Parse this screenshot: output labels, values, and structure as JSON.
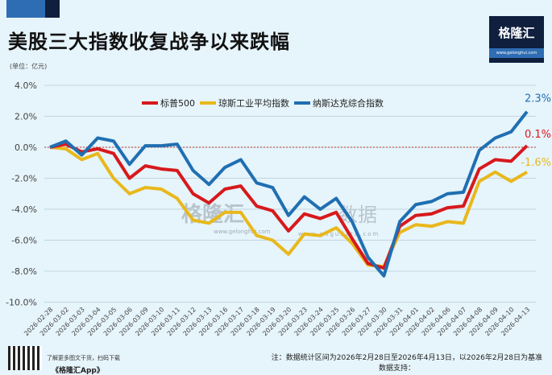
{
  "header": {
    "title": "美股三大指数收复战争以来跌幅",
    "unit": "(单位：亿元)",
    "logo_text": "格隆汇",
    "logo_url": "www.gelonghui.com"
  },
  "watermarks": [
    "格隆汇",
    "www.gelonghui.com",
    "数据",
    "www.gogudata.com"
  ],
  "footer": {
    "note": "注：数据统计区间为2026年2月28日至2026年4月13日，以2026年2月28日为基准",
    "source": "数据支持：",
    "qr_text": "了解更多图文干货，扫码下载",
    "app_name": "《格隆汇App》"
  },
  "colors": {
    "sp500": "#d7191c",
    "dow": "#e8b81c",
    "nasdaq": "#1f6fb2",
    "background": "#e6f4fb",
    "zero_line": "#c0392b"
  },
  "chart_data": {
    "type": "line",
    "title": "美股三大指数收复战争以来跌幅",
    "ylim": [
      -10,
      4
    ],
    "yticks": [
      "4.0%",
      "2.0%",
      "0.0%",
      "-2.0%",
      "-4.0%",
      "-6.0%",
      "-8.0%",
      "-10.0%"
    ],
    "ytick_values": [
      4,
      2,
      0,
      -2,
      -4,
      -6,
      -8,
      -10
    ],
    "grid": true,
    "legend_placement": "top-center",
    "x": [
      "2026-02-28",
      "2026-03-02",
      "2026-03-03",
      "2026-03-04",
      "2026-03-05",
      "2026-03-06",
      "2026-03-09",
      "2026-03-10",
      "2026-03-11",
      "2026-03-12",
      "2026-03-13",
      "2026-03-16",
      "2026-03-17",
      "2026-03-18",
      "2026-03-19",
      "2026-03-20",
      "2026-03-23",
      "2026-03-24",
      "2026-03-25",
      "2026-03-26",
      "2026-03-27",
      "2026-03-30",
      "2026-03-31",
      "2026-04-01",
      "2026-04-02",
      "2026-04-06",
      "2026-04-07",
      "2026-04-08",
      "2026-04-09",
      "2026-04-10",
      "2026-04-13"
    ],
    "series": [
      {
        "name": "标普500",
        "key": "sp500",
        "end_label": "0.1%",
        "values": [
          0,
          0.2,
          -0.3,
          -0.1,
          -0.4,
          -2.0,
          -1.2,
          -1.4,
          -1.5,
          -3.0,
          -3.6,
          -2.7,
          -2.5,
          -3.8,
          -4.1,
          -5.4,
          -4.3,
          -4.6,
          -4.2,
          -5.9,
          -7.5,
          -7.8,
          -5.1,
          -4.4,
          -4.3,
          -3.9,
          -3.8,
          -1.4,
          -0.8,
          -0.9,
          0.1
        ]
      },
      {
        "name": "琼斯工业平均指数",
        "key": "dow",
        "end_label": "-1.6%",
        "values": [
          0,
          -0.1,
          -0.8,
          -0.4,
          -2.0,
          -3.0,
          -2.6,
          -2.7,
          -3.3,
          -4.7,
          -4.9,
          -4.2,
          -4.2,
          -5.7,
          -6.0,
          -6.9,
          -5.6,
          -5.7,
          -5.2,
          -6.2,
          -7.6,
          -7.7,
          -5.5,
          -5.0,
          -5.1,
          -4.8,
          -4.9,
          -2.2,
          -1.6,
          -2.2,
          -1.6
        ]
      },
      {
        "name": "纳斯达克综合指数",
        "key": "nasdaq",
        "end_label": "2.3%",
        "values": [
          0,
          0.4,
          -0.5,
          0.6,
          0.4,
          -1.1,
          0.1,
          0.1,
          0.2,
          -1.5,
          -2.4,
          -1.3,
          -0.8,
          -2.3,
          -2.6,
          -4.4,
          -3.2,
          -4.0,
          -3.3,
          -4.8,
          -7.1,
          -8.3,
          -4.8,
          -3.7,
          -3.5,
          -3.0,
          -2.9,
          -0.2,
          0.6,
          1.0,
          2.3
        ]
      }
    ]
  }
}
